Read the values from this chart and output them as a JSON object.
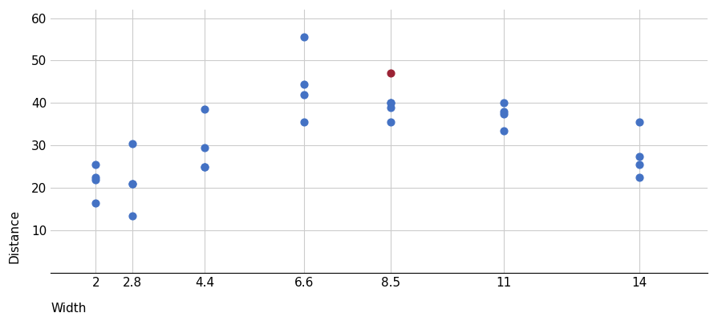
{
  "xlabel": "Width",
  "ylabel": "Distance",
  "xlim": [
    1.0,
    15.5
  ],
  "ylim": [
    0,
    62
  ],
  "yticks": [
    10,
    20,
    30,
    40,
    50,
    60
  ],
  "xticks": [
    2,
    2.8,
    4.4,
    6.6,
    8.5,
    11,
    14
  ],
  "xtick_labels": [
    "2",
    "2.8",
    "4.4",
    "6.6",
    "8.5",
    "11",
    "14"
  ],
  "blue_color": "#4472C4",
  "red_color": "#9B2335",
  "marker_size": 40,
  "blue_points": [
    [
      2,
      25.5
    ],
    [
      2,
      22.5
    ],
    [
      2,
      22.0
    ],
    [
      2,
      16.5
    ],
    [
      2.8,
      30.5
    ],
    [
      2.8,
      21.0
    ],
    [
      2.8,
      21.0
    ],
    [
      2.8,
      13.5
    ],
    [
      4.4,
      38.5
    ],
    [
      4.4,
      29.5
    ],
    [
      4.4,
      25.0
    ],
    [
      4.4,
      25.0
    ],
    [
      6.6,
      55.5
    ],
    [
      6.6,
      44.5
    ],
    [
      6.6,
      42.0
    ],
    [
      6.6,
      35.5
    ],
    [
      8.5,
      40.0
    ],
    [
      8.5,
      40.0
    ],
    [
      8.5,
      39.0
    ],
    [
      8.5,
      35.5
    ],
    [
      11,
      40.0
    ],
    [
      11,
      38.0
    ],
    [
      11,
      37.5
    ],
    [
      11,
      33.5
    ],
    [
      14,
      35.5
    ],
    [
      14,
      27.5
    ],
    [
      14,
      25.5
    ],
    [
      14,
      22.5
    ]
  ],
  "red_points": [
    [
      8.5,
      47.0
    ]
  ],
  "grid_color": "#cccccc",
  "bg_color": "#ffffff",
  "tick_font_size": 11,
  "label_font_size": 11
}
